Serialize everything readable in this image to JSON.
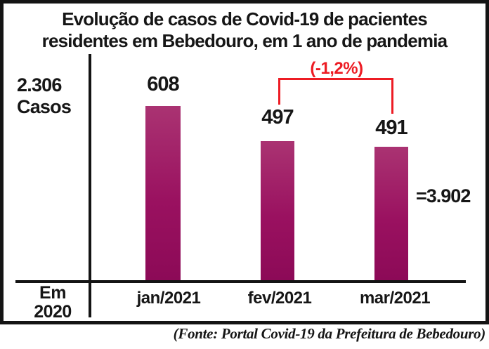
{
  "title": {
    "line1": "Evolução de casos de Covid-19 de pacientes",
    "line2": "residentes em Bebedouro, em 1 ano de pandemia"
  },
  "y_axis_label": {
    "line1": "2.306",
    "line2": "Casos"
  },
  "origin_label": {
    "line1": "Em",
    "line2": "2020"
  },
  "total_label": "=3.902",
  "annotation": {
    "label": "(-1,2%)",
    "color": "#ed1c24"
  },
  "source": "(Fonte: Portal Covid-19 da Prefeitura de Bebedouro)",
  "colors": {
    "bar_gradient_top": "#aa3372",
    "bar_gradient_bottom": "#8c0a57",
    "axis": "#141414",
    "text": "#161616",
    "annotation_red": "#ed1c24",
    "background": "#ffffff"
  },
  "chart_data": {
    "type": "bar",
    "categories": [
      "jan/2021",
      "fev/2021",
      "mar/2021"
    ],
    "values": [
      608,
      497,
      491
    ],
    "title": "Evolução de casos de Covid-19 de pacientes residentes em Bebedouro, em 1 ano de pandemia",
    "xlabel": "",
    "ylabel": "Casos",
    "ylim": [
      0,
      700
    ],
    "grid": false,
    "legend": "none",
    "bar_color": "#9a1160",
    "data_labels": [
      "608",
      "497",
      "491"
    ],
    "annotations": [
      {
        "type": "bracket",
        "from_category": "fev/2021",
        "to_category": "mar/2021",
        "label": "(-1,2%)",
        "color": "#ed1c24"
      },
      {
        "type": "text",
        "label": "2.306 Casos",
        "position": "left-of-axis",
        "meaning": "cases in 2020"
      },
      {
        "type": "text",
        "label": "=3.902",
        "position": "right",
        "meaning": "cumulative total"
      },
      {
        "type": "text",
        "label": "Em 2020",
        "position": "origin"
      }
    ]
  }
}
